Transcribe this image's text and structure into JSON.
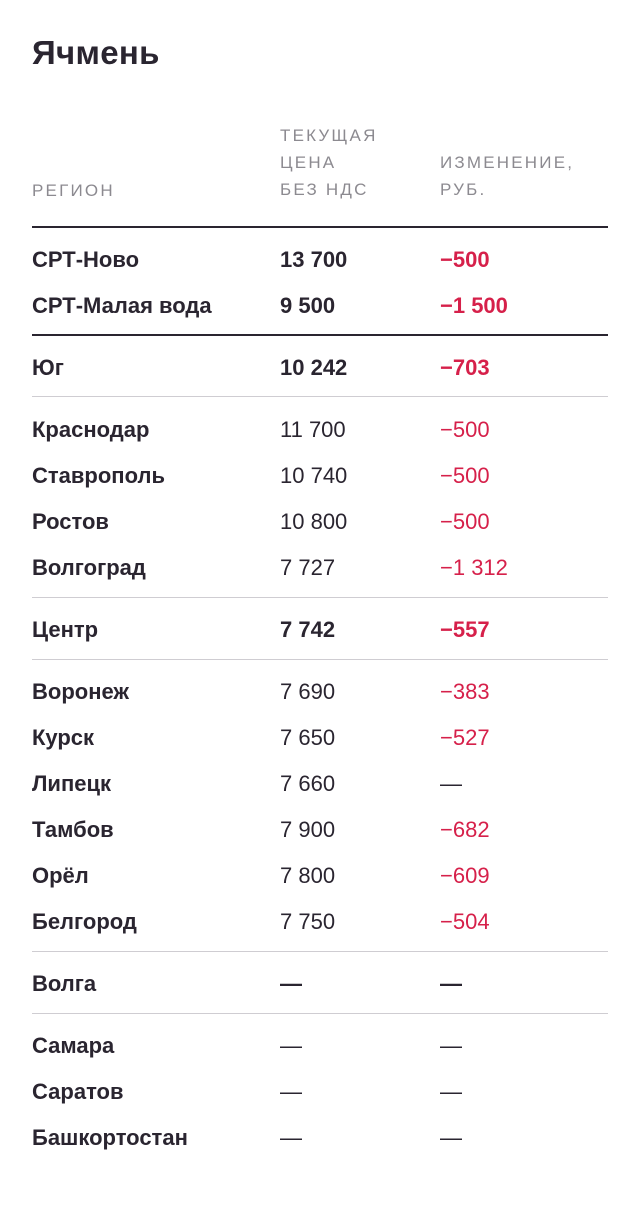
{
  "title": "Ячмень",
  "headers": {
    "region": "РЕГИОН",
    "price_line1": "ТЕКУЩАЯ",
    "price_line2": "ЦЕНА",
    "price_line3": "БЕЗ НДС",
    "change_line1": "ИЗМЕНЕНИЕ,",
    "change_line2": "РУБ."
  },
  "rows": [
    {
      "region": "СРТ-Ново",
      "price": "13 700",
      "change": "−500",
      "bold": true
    },
    {
      "region": "СРТ-Малая вода",
      "price": "9 500",
      "change": "−1 500",
      "bold": true
    },
    {
      "region": "Юг",
      "price": "10 242",
      "change": "−703",
      "bold": true
    },
    {
      "region": "Краснодар",
      "price": "11 700",
      "change": "−500",
      "bold": false
    },
    {
      "region": "Ставрополь",
      "price": "10 740",
      "change": "−500",
      "bold": false
    },
    {
      "region": "Ростов",
      "price": "10 800",
      "change": "−500",
      "bold": false
    },
    {
      "region": "Волгоград",
      "price": "7 727",
      "change": "−1 312",
      "bold": false
    },
    {
      "region": "Центр",
      "price": "7 742",
      "change": "−557",
      "bold": true
    },
    {
      "region": "Воронеж",
      "price": "7 690",
      "change": "−383",
      "bold": false
    },
    {
      "region": "Курск",
      "price": "7 650",
      "change": "−527",
      "bold": false
    },
    {
      "region": "Липецк",
      "price": "7 660",
      "change": "—",
      "bold": false
    },
    {
      "region": "Тамбов",
      "price": "7 900",
      "change": "−682",
      "bold": false
    },
    {
      "region": "Орёл",
      "price": "7 800",
      "change": "−609",
      "bold": false
    },
    {
      "region": "Белгород",
      "price": "7 750",
      "change": "−504",
      "bold": false
    },
    {
      "region": "Волга",
      "price": "—",
      "change": "—",
      "bold": true
    },
    {
      "region": "Самара",
      "price": "—",
      "change": "—",
      "bold": false
    },
    {
      "region": "Саратов",
      "price": "—",
      "change": "—",
      "bold": false
    },
    {
      "region": "Башкортостан",
      "price": "—",
      "change": "—",
      "bold": false
    }
  ]
}
